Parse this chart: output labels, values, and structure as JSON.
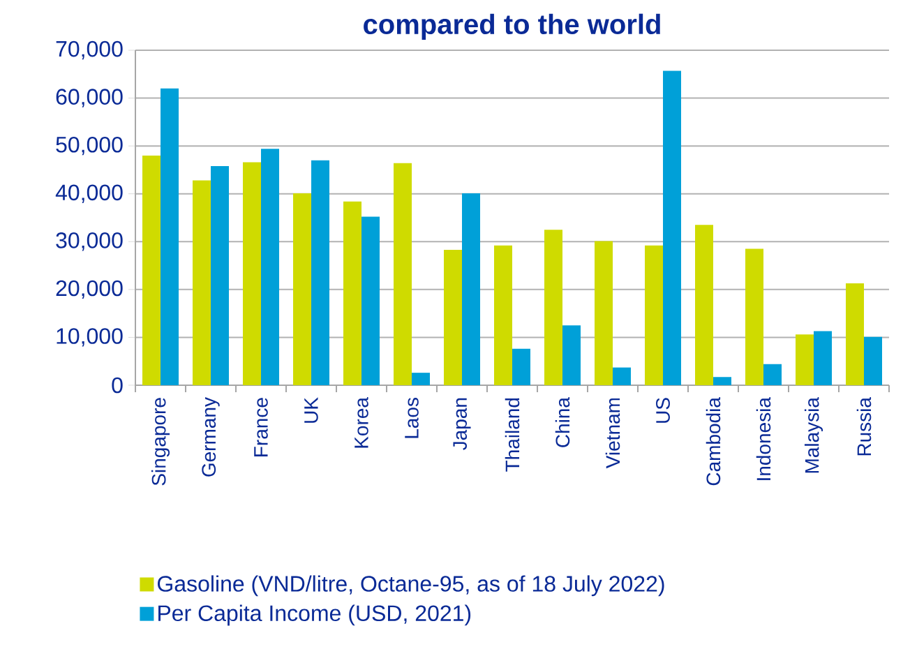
{
  "chart_data": {
    "type": "bar",
    "title": "compared to the world",
    "categories": [
      "Singapore",
      "Germany",
      "France",
      "UK",
      "Korea",
      "Laos",
      "Japan",
      "Thailand",
      "China",
      "Vietnam",
      "US",
      "Cambodia",
      "Indonesia",
      "Malaysia",
      "Russia"
    ],
    "series": [
      {
        "name": "Gasoline (VND/litre, Octane-95, as of 18 July 2022)",
        "color": "#cfdb00",
        "values": [
          48000,
          42800,
          46600,
          40100,
          38400,
          46400,
          28300,
          29200,
          32500,
          30100,
          29200,
          33500,
          28500,
          10600,
          21300
        ]
      },
      {
        "name": "Per Capita Income (USD, 2021)",
        "color": "#00a0d8",
        "values": [
          62000,
          45800,
          49400,
          47000,
          35200,
          2600,
          40100,
          7600,
          12500,
          3700,
          65700,
          1700,
          4400,
          11300,
          10100
        ]
      }
    ],
    "ylim": [
      0,
      70000
    ],
    "yticks": [
      0,
      {
        "value": 10000,
        "label": "10,000"
      },
      {
        "value": 20000,
        "label": "20,000"
      },
      {
        "value": 30000,
        "label": "30,000"
      },
      {
        "value": 40000,
        "label": "40,000"
      },
      {
        "value": 50000,
        "label": "50,000"
      },
      {
        "value": 60000,
        "label": "60,000"
      },
      {
        "value": 70000,
        "label": "70,000"
      }
    ],
    "grid": "y",
    "legend": "bottom"
  }
}
